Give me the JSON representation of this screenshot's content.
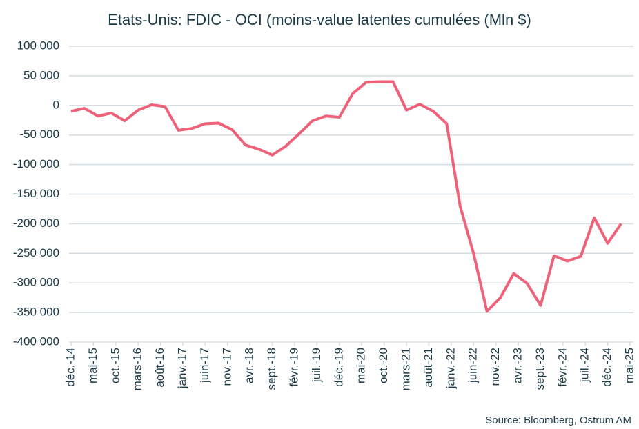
{
  "chart_data": {
    "type": "line",
    "title": "Etats-Unis: FDIC - OCI (moins-value latentes cumulées (Mln $)",
    "source": "Source: Bloomberg,  Ostrum AM",
    "x": [
      "2014-12",
      "2015-03",
      "2015-06",
      "2015-09",
      "2015-12",
      "2016-03",
      "2016-06",
      "2016-09",
      "2016-12",
      "2017-03",
      "2017-06",
      "2017-09",
      "2017-12",
      "2018-03",
      "2018-06",
      "2018-09",
      "2018-12",
      "2019-03",
      "2019-06",
      "2019-09",
      "2019-12",
      "2020-03",
      "2020-06",
      "2020-09",
      "2020-12",
      "2021-03",
      "2021-06",
      "2021-09",
      "2021-12",
      "2022-03",
      "2022-06",
      "2022-09",
      "2022-12",
      "2023-03",
      "2023-06",
      "2023-09",
      "2023-12",
      "2024-03",
      "2024-06",
      "2024-09",
      "2024-12",
      "2025-03"
    ],
    "series": [
      {
        "color": "#ee6279",
        "values": [
          -10000,
          -5000,
          -18000,
          -13000,
          -26000,
          -8000,
          1000,
          -2000,
          -42000,
          -39000,
          -31000,
          -30000,
          -41000,
          -67000,
          -74000,
          -84000,
          -69000,
          -48000,
          -26000,
          -18000,
          -20000,
          20000,
          39000,
          40000,
          40000,
          -8000,
          2000,
          -10000,
          -31000,
          -170000,
          -250000,
          -348000,
          -325000,
          -284000,
          -301000,
          -338000,
          -254000,
          -263000,
          -255000,
          -190000,
          -233000,
          -200000
        ]
      }
    ],
    "xlim": [
      "2014-12",
      "2025-05"
    ],
    "xticks": [
      {
        "value": "2014-12",
        "label": "déc.-14"
      },
      {
        "value": "2015-05",
        "label": "mai-15"
      },
      {
        "value": "2015-10",
        "label": "oct.-15"
      },
      {
        "value": "2016-03",
        "label": "mars-16"
      },
      {
        "value": "2016-08",
        "label": "août-16"
      },
      {
        "value": "2017-01",
        "label": "janv.-17"
      },
      {
        "value": "2017-06",
        "label": "juin-17"
      },
      {
        "value": "2017-11",
        "label": "nov.-17"
      },
      {
        "value": "2018-04",
        "label": "avr.-18"
      },
      {
        "value": "2018-09",
        "label": "sept.-18"
      },
      {
        "value": "2019-02",
        "label": "févr.-19"
      },
      {
        "value": "2019-07",
        "label": "juil.-19"
      },
      {
        "value": "2019-12",
        "label": "déc.-19"
      },
      {
        "value": "2020-05",
        "label": "mai-20"
      },
      {
        "value": "2020-10",
        "label": "oct.-20"
      },
      {
        "value": "2021-03",
        "label": "mars-21"
      },
      {
        "value": "2021-08",
        "label": "août-21"
      },
      {
        "value": "2022-01",
        "label": "janv.-22"
      },
      {
        "value": "2022-06",
        "label": "juin-22"
      },
      {
        "value": "2022-11",
        "label": "nov.-22"
      },
      {
        "value": "2023-04",
        "label": "avr.-23"
      },
      {
        "value": "2023-09",
        "label": "sept.-23"
      },
      {
        "value": "2024-02",
        "label": "févr.-24"
      },
      {
        "value": "2024-07",
        "label": "juil.-24"
      },
      {
        "value": "2024-12",
        "label": "déc.-24"
      },
      {
        "value": "2025-05",
        "label": "mai-25"
      }
    ],
    "ylim": [
      -400000,
      100000
    ],
    "yticks": [
      {
        "value": -400000,
        "label": "-400 000"
      },
      {
        "value": -350000,
        "label": "-350 000"
      },
      {
        "value": -300000,
        "label": "-300 000"
      },
      {
        "value": -250000,
        "label": "-250 000"
      },
      {
        "value": -200000,
        "label": "-200 000"
      },
      {
        "value": -150000,
        "label": "-150 000"
      },
      {
        "value": -100000,
        "label": "-100 000"
      },
      {
        "value": -50000,
        "label": "-50 000"
      },
      {
        "value": 0,
        "label": "0"
      },
      {
        "value": 50000,
        "label": "50 000"
      },
      {
        "value": 100000,
        "label": "100 000"
      }
    ],
    "grid": true
  }
}
